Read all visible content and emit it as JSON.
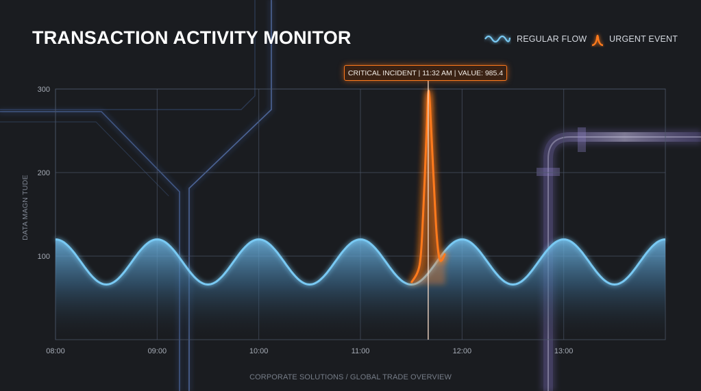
{
  "header": {
    "title": "TRANSACTION ACTIVITY MONITOR"
  },
  "legend": [
    {
      "label": "REGULAR FLOW",
      "icon": "wave-icon",
      "color": "#79c9f3"
    },
    {
      "label": "URGENT EVENT",
      "icon": "spike-icon",
      "color": "#ff7a1c"
    }
  ],
  "footer": {
    "text": "CORPORATE SOLUTIONS / GLOBAL TRADE OVERVIEW"
  },
  "chart_data": {
    "type": "line",
    "title": "TRANSACTION ACTIVITY MONITOR",
    "ylabel": "DATA MAGN TUDE",
    "xlabel": "",
    "ylim": [
      0,
      300
    ],
    "yticks": [
      100,
      200,
      300
    ],
    "xlim": [
      "08:00",
      "14:00"
    ],
    "xticks": [
      "08:00",
      "09:00",
      "10:00",
      "11:00",
      "12:00",
      "13:00"
    ],
    "grid": true,
    "legend_position": "top-right",
    "series": [
      {
        "name": "REGULAR FLOW",
        "color": "#79c9f3",
        "style": "sine",
        "x_start": "08:00",
        "x_end": "14:00",
        "period_minutes": 60,
        "y_max": 120,
        "y_min": 66,
        "first_peak": "08:00"
      },
      {
        "name": "URGENT EVENT",
        "color": "#ff7a1c",
        "style": "spike",
        "points": [
          {
            "x": "11:30",
            "y": 68
          },
          {
            "x": "11:35",
            "y": 90
          },
          {
            "x": "11:37",
            "y": 150
          },
          {
            "x": "11:39",
            "y": 245
          },
          {
            "x": "11:40",
            "y": 295
          },
          {
            "x": "11:41",
            "y": 282
          },
          {
            "x": "11:43",
            "y": 200
          },
          {
            "x": "11:45",
            "y": 125
          },
          {
            "x": "11:47",
            "y": 95
          },
          {
            "x": "11:50",
            "y": 103
          }
        ]
      }
    ],
    "annotation": {
      "text": "CRITICAL INCIDENT | 11:32 AM | VALUE: 985.4",
      "x": "11:40"
    }
  }
}
